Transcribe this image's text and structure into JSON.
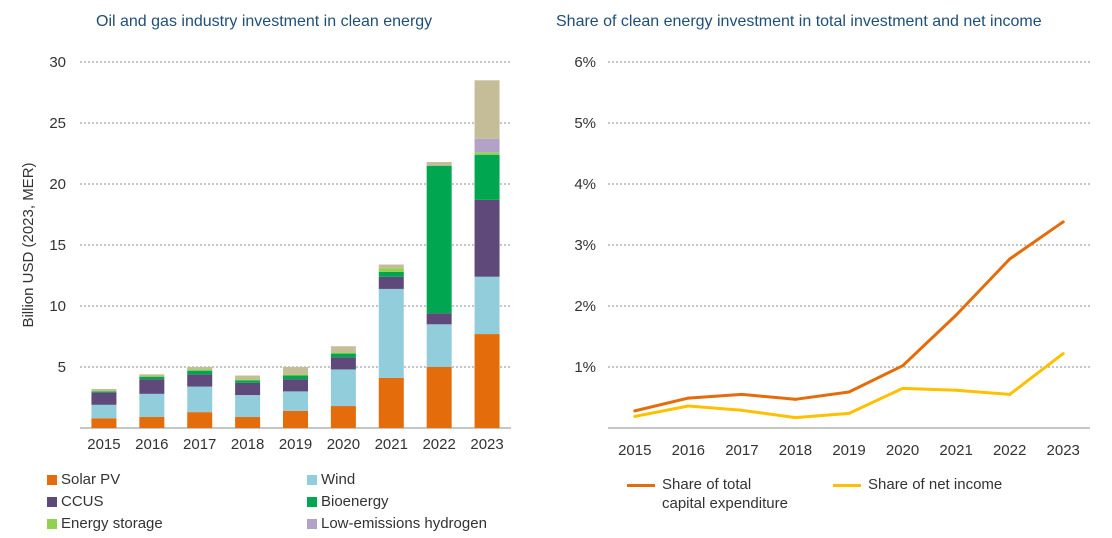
{
  "chart_data": [
    {
      "type": "bar",
      "stacked": true,
      "title": "Oil and gas industry investment in clean energy",
      "ylabel": "Billion USD (2023, MER)",
      "xlabel": "",
      "ylim": [
        0,
        30
      ],
      "yticks": [
        "5",
        "10",
        "15",
        "20",
        "25",
        "30"
      ],
      "grid": true,
      "legend_position": "bottom",
      "categories": [
        "2015",
        "2016",
        "2017",
        "2018",
        "2019",
        "2020",
        "2021",
        "2022",
        "2023"
      ],
      "series": [
        {
          "name": "Solar PV",
          "color": "#e46c0a",
          "values": [
            0.8,
            0.9,
            1.3,
            0.9,
            1.4,
            1.8,
            4.1,
            5.0,
            7.7
          ]
        },
        {
          "name": "Wind",
          "color": "#92cddc",
          "values": [
            1.1,
            1.9,
            2.1,
            1.8,
            1.6,
            3.0,
            7.3,
            3.5,
            4.7
          ]
        },
        {
          "name": "CCUS",
          "color": "#5f497a",
          "values": [
            1.0,
            1.2,
            1.0,
            1.0,
            1.0,
            1.0,
            1.0,
            0.9,
            6.3
          ]
        },
        {
          "name": "Bioenergy",
          "color": "#00a650",
          "values": [
            0.1,
            0.2,
            0.3,
            0.2,
            0.3,
            0.3,
            0.4,
            12.1,
            3.7
          ]
        },
        {
          "name": "Energy storage",
          "color": "#92d050",
          "values": [
            0.0,
            0.1,
            0.1,
            0.1,
            0.1,
            0.1,
            0.3,
            0.0,
            0.2
          ]
        },
        {
          "name": "Low-emissions hydrogen",
          "color": "#b3a2c7",
          "values": [
            0.0,
            0.0,
            0.0,
            0.0,
            0.0,
            0.0,
            0.0,
            0.0,
            1.1
          ]
        },
        {
          "name": "",
          "color": "#c4bd97",
          "values": [
            0.2,
            0.1,
            0.2,
            0.3,
            0.6,
            0.5,
            0.3,
            0.3,
            4.8
          ]
        }
      ],
      "legend": [
        {
          "label": "Solar PV",
          "color": "#e46c0a"
        },
        {
          "label": "Wind",
          "color": "#92cddc"
        },
        {
          "label": "CCUS",
          "color": "#5f497a"
        },
        {
          "label": "Bioenergy",
          "color": "#00a650"
        },
        {
          "label": "Energy storage",
          "color": "#92d050"
        },
        {
          "label": "Low-emissions hydrogen",
          "color": "#b3a2c7"
        }
      ]
    },
    {
      "type": "line",
      "title": "Share of clean energy investment in total investment and net income",
      "xlabel": "",
      "ylabel": "",
      "ylim": [
        0,
        6
      ],
      "yticks": [
        "1%",
        "2%",
        "3%",
        "4%",
        "5%",
        "6%"
      ],
      "grid": true,
      "legend_position": "bottom",
      "x": [
        "2015",
        "2016",
        "2017",
        "2018",
        "2019",
        "2020",
        "2021",
        "2022",
        "2023"
      ],
      "series": [
        {
          "name": "Share of total capital expenditure",
          "label_lines": [
            "Share of total",
            "capital expenditure"
          ],
          "color": "#e46c0a",
          "values": [
            0.28,
            0.49,
            0.55,
            0.47,
            0.59,
            1.02,
            1.85,
            2.77,
            3.38
          ]
        },
        {
          "name": "Share of net income",
          "label_lines": [
            "Share of net income"
          ],
          "color": "#ffc000",
          "values": [
            0.19,
            0.36,
            0.29,
            0.17,
            0.24,
            0.65,
            0.62,
            0.55,
            1.22
          ]
        }
      ]
    }
  ]
}
